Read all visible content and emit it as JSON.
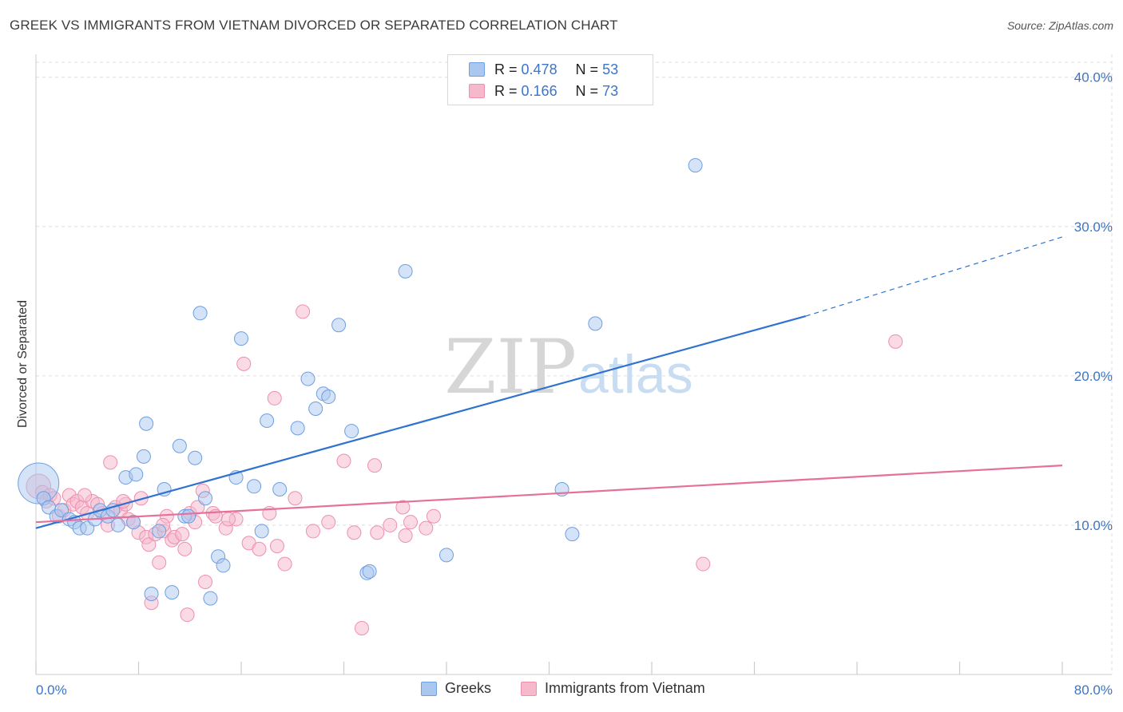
{
  "title": "GREEK VS IMMIGRANTS FROM VIETNAM DIVORCED OR SEPARATED CORRELATION CHART",
  "source": "Source: ZipAtlas.com",
  "watermark": {
    "zip": "ZIP",
    "atlas": "atlas"
  },
  "legend_top": {
    "rows": [
      {
        "r_label": "R =",
        "r_value": "0.478",
        "n_label": "N =",
        "n_value": "53"
      },
      {
        "r_label": "R =",
        "r_value": "0.166",
        "n_label": "N =",
        "n_value": "73"
      }
    ]
  },
  "colors": {
    "greeks_fill": "#a9c7ef",
    "greeks_stroke": "#6e9fe0",
    "greeks_line": "#2f72cf",
    "viet_fill": "#f6b8cb",
    "viet_stroke": "#ef8fae",
    "viet_line": "#e5709a",
    "grid": "#dddddd",
    "axis_text": "#3c74c8"
  },
  "chart_data": {
    "type": "scatter",
    "title": "GREEK VS IMMIGRANTS FROM VIETNAM DIVORCED OR SEPARATED CORRELATION CHART",
    "xlabel": "",
    "ylabel": "Divorced or Separated",
    "xlim": [
      0,
      80
    ],
    "ylim": [
      0,
      41
    ],
    "x_tick_labels": [
      "0.0%",
      "80.0%"
    ],
    "y_tick_labels": [
      "10.0%",
      "20.0%",
      "30.0%",
      "40.0%"
    ],
    "y_ticks": [
      10,
      20,
      30,
      40
    ],
    "grid": true,
    "legend_position": "top-center",
    "series": [
      {
        "name": "Greeks",
        "r": 0.478,
        "n": 53,
        "trend": {
          "x0": 0,
          "y0": 9.8,
          "x1": 60,
          "y1": 24.0,
          "dashed_to": {
            "x": 80,
            "y": 29.3
          }
        },
        "points": [
          [
            0.2,
            12.8,
            3.0
          ],
          [
            0.6,
            11.8,
            1.0
          ],
          [
            1.0,
            11.2,
            1.0
          ],
          [
            1.6,
            10.6,
            1.0
          ],
          [
            2.0,
            11.0,
            1.0
          ],
          [
            2.6,
            10.4,
            1.0
          ],
          [
            3.0,
            10.2,
            1.0
          ],
          [
            3.4,
            9.8,
            1.0
          ],
          [
            4.0,
            9.8,
            1.0
          ],
          [
            4.6,
            10.4,
            1.0
          ],
          [
            5.0,
            11.0,
            1.0
          ],
          [
            5.6,
            10.6,
            1.0
          ],
          [
            6.0,
            11.0,
            1.0
          ],
          [
            6.4,
            10.0,
            1.0
          ],
          [
            7.0,
            13.2,
            1.0
          ],
          [
            7.6,
            10.2,
            1.0
          ],
          [
            7.8,
            13.4,
            1.0
          ],
          [
            8.4,
            14.6,
            1.0
          ],
          [
            8.6,
            16.8,
            1.0
          ],
          [
            9.0,
            5.4,
            1.0
          ],
          [
            9.6,
            9.6,
            1.0
          ],
          [
            10.0,
            12.4,
            1.0
          ],
          [
            10.6,
            5.5,
            1.0
          ],
          [
            11.2,
            15.3,
            1.0
          ],
          [
            11.6,
            10.6,
            1.0
          ],
          [
            11.9,
            10.6,
            1.0
          ],
          [
            12.4,
            14.5,
            1.0
          ],
          [
            12.8,
            24.2,
            1.0
          ],
          [
            13.2,
            11.8,
            1.0
          ],
          [
            13.6,
            5.1,
            1.0
          ],
          [
            14.2,
            7.9,
            1.0
          ],
          [
            14.6,
            7.3,
            1.0
          ],
          [
            15.6,
            13.2,
            1.0
          ],
          [
            16.0,
            22.5,
            1.0
          ],
          [
            17.0,
            12.6,
            1.0
          ],
          [
            17.6,
            9.6,
            1.0
          ],
          [
            18.0,
            17.0,
            1.0
          ],
          [
            19.0,
            12.4,
            1.0
          ],
          [
            20.4,
            16.5,
            1.0
          ],
          [
            21.2,
            19.8,
            1.0
          ],
          [
            21.8,
            17.8,
            1.0
          ],
          [
            22.4,
            18.8,
            1.0
          ],
          [
            22.8,
            18.6,
            1.0
          ],
          [
            23.6,
            23.4,
            1.0
          ],
          [
            24.6,
            16.3,
            1.0
          ],
          [
            25.8,
            6.8,
            1.0
          ],
          [
            26.0,
            6.9,
            1.0
          ],
          [
            28.8,
            27.0,
            1.0
          ],
          [
            32.0,
            8.0,
            1.0
          ],
          [
            41.0,
            12.4,
            1.0
          ],
          [
            41.8,
            9.4,
            1.0
          ],
          [
            43.6,
            23.5,
            1.0
          ],
          [
            51.4,
            34.1,
            1.0
          ]
        ]
      },
      {
        "name": "Immigrants from Vietnam",
        "r": 0.166,
        "n": 73,
        "trend": {
          "x0": 0,
          "y0": 10.2,
          "x1": 80,
          "y1": 14.0
        },
        "points": [
          [
            0.2,
            12.6,
            1.8
          ],
          [
            0.5,
            12.2,
            1.0
          ],
          [
            0.8,
            11.6,
            1.0
          ],
          [
            1.1,
            12.0,
            1.0
          ],
          [
            1.4,
            11.8,
            1.0
          ],
          [
            1.8,
            10.6,
            1.0
          ],
          [
            2.2,
            11.0,
            1.0
          ],
          [
            2.6,
            12.0,
            1.0
          ],
          [
            2.9,
            11.4,
            1.0
          ],
          [
            3.2,
            11.6,
            1.0
          ],
          [
            3.6,
            11.2,
            1.0
          ],
          [
            4.0,
            10.8,
            1.0
          ],
          [
            4.4,
            11.6,
            1.0
          ],
          [
            4.8,
            11.4,
            1.0
          ],
          [
            5.2,
            10.8,
            1.0
          ],
          [
            5.6,
            10.0,
            1.0
          ],
          [
            5.8,
            14.2,
            1.0
          ],
          [
            6.2,
            11.2,
            1.0
          ],
          [
            6.6,
            11.0,
            1.0
          ],
          [
            7.0,
            11.4,
            1.0
          ],
          [
            7.2,
            10.4,
            1.0
          ],
          [
            7.6,
            10.2,
            1.0
          ],
          [
            8.0,
            9.5,
            1.0
          ],
          [
            8.2,
            11.8,
            1.0
          ],
          [
            8.6,
            9.2,
            1.0
          ],
          [
            8.8,
            8.7,
            1.0
          ],
          [
            9.0,
            4.8,
            1.0
          ],
          [
            9.3,
            9.4,
            1.0
          ],
          [
            9.6,
            7.5,
            1.0
          ],
          [
            10.0,
            9.6,
            1.0
          ],
          [
            10.2,
            10.6,
            1.0
          ],
          [
            10.6,
            9.0,
            1.0
          ],
          [
            10.8,
            9.2,
            1.0
          ],
          [
            11.4,
            9.4,
            1.0
          ],
          [
            11.6,
            8.4,
            1.0
          ],
          [
            11.8,
            4.0,
            1.0
          ],
          [
            12.0,
            10.8,
            1.0
          ],
          [
            12.4,
            10.2,
            1.0
          ],
          [
            13.0,
            12.3,
            1.0
          ],
          [
            13.2,
            6.2,
            1.0
          ],
          [
            13.8,
            10.8,
            1.0
          ],
          [
            14.0,
            10.6,
            1.0
          ],
          [
            14.8,
            9.8,
            1.0
          ],
          [
            15.6,
            10.4,
            1.0
          ],
          [
            16.2,
            20.8,
            1.0
          ],
          [
            16.6,
            8.8,
            1.0
          ],
          [
            17.4,
            8.4,
            1.0
          ],
          [
            18.2,
            10.8,
            1.0
          ],
          [
            18.6,
            18.5,
            1.0
          ],
          [
            18.8,
            8.6,
            1.0
          ],
          [
            19.4,
            7.4,
            1.0
          ],
          [
            20.2,
            11.8,
            1.0
          ],
          [
            20.8,
            24.3,
            1.0
          ],
          [
            22.8,
            10.2,
            1.0
          ],
          [
            24.0,
            14.3,
            1.0
          ],
          [
            24.8,
            9.5,
            1.0
          ],
          [
            25.4,
            3.1,
            1.0
          ],
          [
            26.4,
            14.0,
            1.0
          ],
          [
            26.6,
            9.5,
            1.0
          ],
          [
            28.6,
            11.2,
            1.0
          ],
          [
            28.8,
            9.3,
            1.0
          ],
          [
            29.2,
            10.2,
            1.0
          ],
          [
            30.4,
            9.8,
            1.0
          ],
          [
            31.0,
            10.6,
            1.0
          ],
          [
            52.0,
            7.4,
            1.0
          ],
          [
            67.0,
            22.3,
            1.0
          ],
          [
            3.8,
            12.0,
            1.0
          ],
          [
            6.8,
            11.6,
            1.0
          ],
          [
            12.6,
            11.2,
            1.0
          ],
          [
            15.0,
            10.4,
            1.0
          ],
          [
            21.6,
            9.6,
            1.0
          ],
          [
            27.6,
            10.0,
            1.0
          ],
          [
            9.9,
            10.0,
            1.0
          ]
        ]
      }
    ]
  },
  "bottom_legend": [
    "Greeks",
    "Immigrants from Vietnam"
  ]
}
